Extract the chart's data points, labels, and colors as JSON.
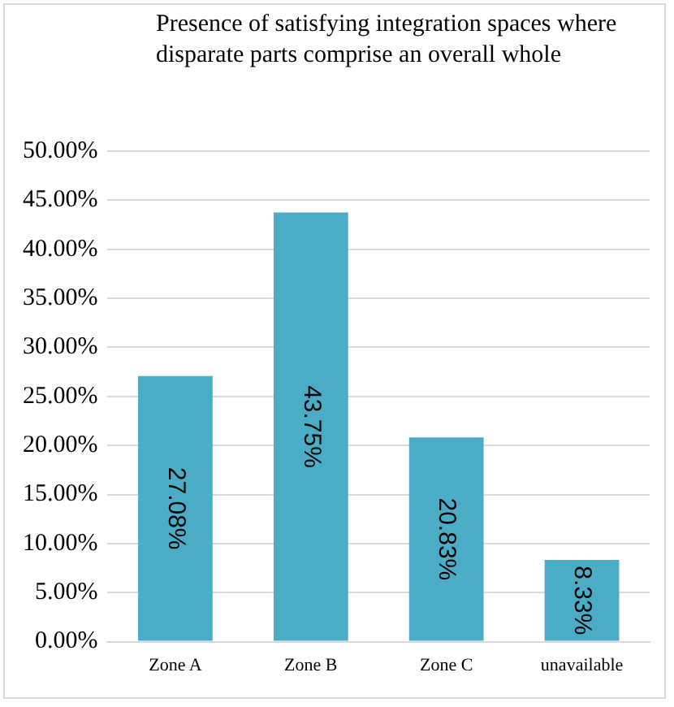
{
  "chart_data": {
    "type": "bar",
    "title": "Presence of satisfying integration spaces where disparate parts comprise an overall whole",
    "categories": [
      "Zone A",
      "Zone B",
      "Zone C",
      "unavailable"
    ],
    "values": [
      27.08,
      43.75,
      20.83,
      8.33
    ],
    "value_labels": [
      "27.08%",
      "43.75%",
      "20.83%",
      "8.33%"
    ],
    "color": "#4bacc6",
    "ylim": [
      0,
      50
    ],
    "yticks": [
      {
        "value": 0,
        "label": "0.00%"
      },
      {
        "value": 5,
        "label": "5.00%"
      },
      {
        "value": 10,
        "label": "10.00%"
      },
      {
        "value": 15,
        "label": "15.00%"
      },
      {
        "value": 20,
        "label": "20.00%"
      },
      {
        "value": 25,
        "label": "25.00%"
      },
      {
        "value": 30,
        "label": "30.00%"
      },
      {
        "value": 35,
        "label": "35.00%"
      },
      {
        "value": 40,
        "label": "40.00%"
      },
      {
        "value": 45,
        "label": "45.00%"
      },
      {
        "value": 50,
        "label": "50.00%"
      }
    ],
    "grid": "y"
  }
}
